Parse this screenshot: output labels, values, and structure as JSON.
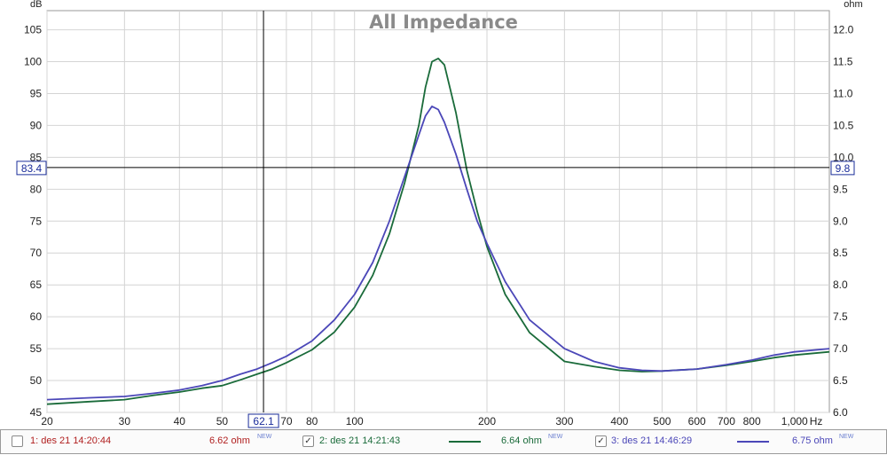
{
  "chart_data": {
    "type": "line",
    "title": "All Impedance",
    "x_unit": "Hz",
    "x_scale": "log",
    "xlim": [
      20,
      1200
    ],
    "x_ticks": [
      {
        "value": 20,
        "label": "20"
      },
      {
        "value": 30,
        "label": "30"
      },
      {
        "value": 40,
        "label": "40"
      },
      {
        "value": 50,
        "label": "50"
      },
      {
        "value": 70,
        "label": "70"
      },
      {
        "value": 80,
        "label": "80"
      },
      {
        "value": 100,
        "label": "100"
      },
      {
        "value": 200,
        "label": "200"
      },
      {
        "value": 300,
        "label": "300"
      },
      {
        "value": 400,
        "label": "400"
      },
      {
        "value": 500,
        "label": "500"
      },
      {
        "value": 600,
        "label": "600"
      },
      {
        "value": 700,
        "label": "700"
      },
      {
        "value": 800,
        "label": "800"
      },
      {
        "value": 1000,
        "label": "1,000"
      }
    ],
    "x_grid": [
      20,
      30,
      40,
      50,
      60,
      70,
      80,
      90,
      100,
      200,
      300,
      400,
      500,
      600,
      700,
      800,
      900,
      1000
    ],
    "y_left_unit": "dB",
    "y_left_lim": [
      45,
      108
    ],
    "y_left_ticks": [
      45,
      50,
      55,
      60,
      65,
      70,
      75,
      80,
      85,
      90,
      95,
      100,
      105
    ],
    "y_right_unit": "ohm",
    "y_right_lim": [
      6.0,
      12.3
    ],
    "y_right_ticks": [
      "6.0",
      "6.5",
      "7.0",
      "7.5",
      "8.0",
      "8.5",
      "9.0",
      "9.5",
      "10.0",
      "10.5",
      "11.0",
      "11.5",
      "12.0"
    ],
    "grid": true,
    "cursor": {
      "x": 62.1,
      "x_label": "62.1",
      "y": 83.4,
      "y_label": "83.4",
      "y_right_label": "9.8"
    },
    "series": [
      {
        "name": "1: des 21 14:20:44",
        "visible": false,
        "color": "#b01e1e",
        "x": [],
        "y": []
      },
      {
        "name": "2: des 21 14:21:43",
        "visible": true,
        "color": "#1a6b3a",
        "x": [
          20,
          25,
          30,
          35,
          40,
          45,
          50,
          55,
          60,
          65,
          70,
          80,
          90,
          100,
          110,
          120,
          130,
          140,
          145,
          150,
          155,
          160,
          170,
          180,
          190,
          200,
          220,
          250,
          300,
          350,
          400,
          450,
          500,
          600,
          700,
          800,
          900,
          1000,
          1200
        ],
        "y": [
          46.3,
          46.7,
          47.0,
          47.7,
          48.2,
          48.8,
          49.2,
          50.1,
          51.0,
          51.8,
          52.8,
          54.8,
          57.6,
          61.5,
          66.5,
          73.0,
          81.0,
          90.0,
          96.0,
          100.0,
          100.5,
          99.5,
          92.0,
          83.0,
          76.5,
          71.0,
          63.5,
          57.5,
          53.0,
          52.2,
          51.6,
          51.4,
          51.5,
          51.8,
          52.4,
          53.0,
          53.6,
          54.0,
          54.5
        ]
      },
      {
        "name": "3: des 21 14:46:29",
        "visible": true,
        "color": "#4b47b8",
        "x": [
          20,
          25,
          30,
          35,
          40,
          45,
          50,
          55,
          60,
          65,
          70,
          80,
          90,
          100,
          110,
          120,
          130,
          140,
          145,
          150,
          155,
          160,
          170,
          180,
          190,
          200,
          220,
          250,
          300,
          350,
          400,
          450,
          500,
          600,
          700,
          800,
          900,
          1000,
          1200
        ],
        "y": [
          47.0,
          47.3,
          47.5,
          48.0,
          48.5,
          49.2,
          50.0,
          51.0,
          51.8,
          52.8,
          53.8,
          56.2,
          59.5,
          63.5,
          68.5,
          75.0,
          82.0,
          88.5,
          91.5,
          93.0,
          92.5,
          90.5,
          85.5,
          80.0,
          75.0,
          71.5,
          65.5,
          59.5,
          55.0,
          53.0,
          52.0,
          51.6,
          51.5,
          51.8,
          52.5,
          53.2,
          54.0,
          54.5,
          55.0
        ]
      }
    ]
  },
  "legend": {
    "items": [
      {
        "name": "1: des 21 14:20:44",
        "checked": false,
        "value": "6.62 ohm",
        "badge": "NEW",
        "color": "#b01e1e",
        "show_line": false
      },
      {
        "name": "2: des 21 14:21:43",
        "checked": true,
        "value": "6.64 ohm",
        "badge": "NEW",
        "color": "#1a6b3a",
        "show_line": true
      },
      {
        "name": "3: des 21 14:46:29",
        "checked": true,
        "value": "6.75 ohm",
        "badge": "NEW",
        "color": "#4b47b8",
        "show_line": true
      }
    ]
  }
}
